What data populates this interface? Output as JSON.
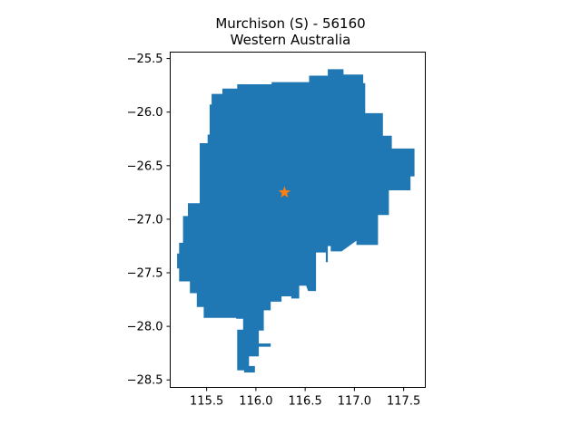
{
  "chart_data": {
    "type": "map",
    "title_line1": "Murchison (S) - 56160",
    "title_line2": "Western Australia",
    "xlim": [
      115.13,
      117.72
    ],
    "ylim": [
      -28.57,
      -25.44
    ],
    "x_ticks": [
      {
        "value": 115.5,
        "label": "115.5"
      },
      {
        "value": 116.0,
        "label": "116.0"
      },
      {
        "value": 116.5,
        "label": "116.5"
      },
      {
        "value": 117.0,
        "label": "117.0"
      },
      {
        "value": 117.5,
        "label": "117.5"
      }
    ],
    "y_ticks": [
      {
        "value": -25.5,
        "label": "−25.5"
      },
      {
        "value": -26.0,
        "label": "−26.0"
      },
      {
        "value": -26.5,
        "label": "−26.5"
      },
      {
        "value": -27.0,
        "label": "−27.0"
      },
      {
        "value": -27.5,
        "label": "−27.5"
      },
      {
        "value": -28.0,
        "label": "−28.0"
      },
      {
        "value": -28.5,
        "label": "−28.5"
      }
    ],
    "region_color": "#1f77b4",
    "marker": {
      "lon": 116.29,
      "lat": -26.75,
      "symbol": "star",
      "color": "#ff7f0e"
    },
    "region_polygon": [
      [
        116.89,
        -25.6
      ],
      [
        116.89,
        -25.65
      ],
      [
        117.09,
        -25.65
      ],
      [
        117.09,
        -25.73
      ],
      [
        117.11,
        -25.73
      ],
      [
        117.11,
        -26.01
      ],
      [
        117.29,
        -26.01
      ],
      [
        117.29,
        -26.22
      ],
      [
        117.38,
        -26.22
      ],
      [
        117.38,
        -26.34
      ],
      [
        117.61,
        -26.34
      ],
      [
        117.61,
        -26.6
      ],
      [
        117.57,
        -26.6
      ],
      [
        117.57,
        -26.73
      ],
      [
        117.35,
        -26.73
      ],
      [
        117.35,
        -26.96
      ],
      [
        117.24,
        -26.96
      ],
      [
        117.24,
        -27.1
      ],
      [
        117.24,
        -27.24
      ],
      [
        117.2,
        -27.24
      ],
      [
        117.2,
        -27.3
      ],
      [
        117.2,
        -27.24
      ],
      [
        117.02,
        -27.24
      ],
      [
        117.02,
        -27.2
      ],
      [
        116.87,
        -27.3
      ],
      [
        116.76,
        -27.3
      ],
      [
        116.76,
        -27.25
      ],
      [
        116.73,
        -27.25
      ],
      [
        116.73,
        -27.4
      ],
      [
        116.71,
        -27.4
      ],
      [
        116.71,
        -27.31
      ],
      [
        116.61,
        -27.31
      ],
      [
        116.61,
        -27.67
      ],
      [
        116.53,
        -27.67
      ],
      [
        116.51,
        -27.62
      ],
      [
        116.44,
        -27.62
      ],
      [
        116.44,
        -27.74
      ],
      [
        116.36,
        -27.74
      ],
      [
        116.36,
        -27.72
      ],
      [
        116.26,
        -27.72
      ],
      [
        116.26,
        -27.77
      ],
      [
        116.15,
        -27.77
      ],
      [
        116.15,
        -27.85
      ],
      [
        116.08,
        -27.85
      ],
      [
        116.08,
        -28.04
      ],
      [
        116.03,
        -28.04
      ],
      [
        116.03,
        -28.16
      ],
      [
        116.15,
        -28.16
      ],
      [
        116.15,
        -28.19
      ],
      [
        116.03,
        -28.19
      ],
      [
        116.03,
        -28.28
      ],
      [
        115.93,
        -28.28
      ],
      [
        115.93,
        -28.37
      ],
      [
        115.99,
        -28.37
      ],
      [
        115.99,
        -28.43
      ],
      [
        115.88,
        -28.43
      ],
      [
        115.88,
        -28.41
      ],
      [
        115.81,
        -28.41
      ],
      [
        115.81,
        -28.03
      ],
      [
        115.87,
        -28.03
      ],
      [
        115.87,
        -27.93
      ],
      [
        115.8,
        -27.93
      ],
      [
        115.8,
        -27.92
      ],
      [
        115.47,
        -27.92
      ],
      [
        115.47,
        -27.82
      ],
      [
        115.4,
        -27.82
      ],
      [
        115.4,
        -27.69
      ],
      [
        115.33,
        -27.69
      ],
      [
        115.33,
        -27.58
      ],
      [
        115.22,
        -27.58
      ],
      [
        115.22,
        -27.46
      ],
      [
        115.2,
        -27.46
      ],
      [
        115.2,
        -27.32
      ],
      [
        115.22,
        -27.32
      ],
      [
        115.22,
        -27.22
      ],
      [
        115.26,
        -27.22
      ],
      [
        115.26,
        -27.06
      ],
      [
        115.26,
        -26.97
      ],
      [
        115.31,
        -26.97
      ],
      [
        115.31,
        -26.85
      ],
      [
        115.43,
        -26.85
      ],
      [
        115.43,
        -26.63
      ],
      [
        115.43,
        -26.42
      ],
      [
        115.43,
        -26.29
      ],
      [
        115.51,
        -26.29
      ],
      [
        115.51,
        -26.21
      ],
      [
        115.53,
        -26.21
      ],
      [
        115.53,
        -26.12
      ],
      [
        115.53,
        -25.93
      ],
      [
        115.55,
        -25.93
      ],
      [
        115.55,
        -25.83
      ],
      [
        115.66,
        -25.83
      ],
      [
        115.66,
        -25.78
      ],
      [
        115.81,
        -25.78
      ],
      [
        115.81,
        -25.74
      ],
      [
        116.16,
        -25.74
      ],
      [
        116.16,
        -25.72
      ],
      [
        116.54,
        -25.72
      ],
      [
        116.54,
        -25.66
      ],
      [
        116.73,
        -25.66
      ],
      [
        116.73,
        -25.6
      ]
    ]
  }
}
